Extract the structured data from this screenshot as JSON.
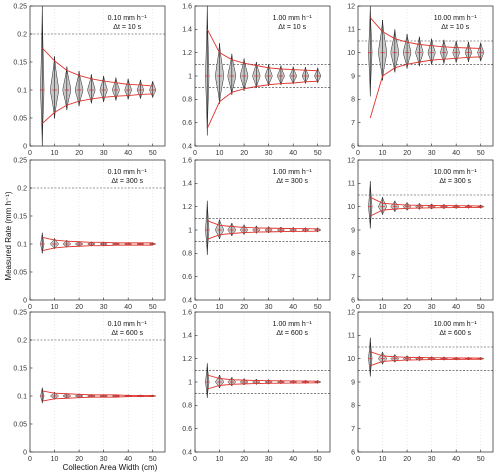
{
  "figure": {
    "xlabel": "Collection Area Width (cm)",
    "ylabel": "Measured Rate (mm h⁻¹)"
  },
  "chart_data": [
    {
      "type": "violin",
      "rate_label": "0.10 mm h⁻¹",
      "dt_label": "Δt = 10 s",
      "true_rate": 0.1,
      "ylim": [
        0,
        0.25
      ],
      "yticks": [
        0,
        0.05,
        0.1,
        0.15,
        0.2,
        0.25
      ],
      "ytick_labels": [
        "0",
        "0.05",
        "0.1",
        "0.15",
        "0.2",
        "0.25"
      ],
      "ref_lines": [
        0.2
      ],
      "xlim": [
        0,
        55
      ],
      "xticks": [
        0,
        10,
        20,
        30,
        40,
        50
      ],
      "widths": [
        5,
        10,
        15,
        20,
        25,
        30,
        35,
        40,
        45,
        50
      ],
      "spread": [
        0.25,
        0.06,
        0.042,
        0.034,
        0.028,
        0.025,
        0.022,
        0.02,
        0.018,
        0.016
      ],
      "envelope_upper": [
        0.175,
        0.152,
        0.135,
        0.126,
        0.12,
        0.116,
        0.113,
        0.11,
        0.109,
        0.107
      ],
      "envelope_lower": [
        0.04,
        0.06,
        0.073,
        0.08,
        0.084,
        0.087,
        0.089,
        0.09,
        0.092,
        0.093
      ]
    },
    {
      "type": "violin",
      "rate_label": "1.00 mm h⁻¹",
      "dt_label": "Δt = 10 s",
      "true_rate": 1.0,
      "ylim": [
        0.4,
        1.6
      ],
      "yticks": [
        0.4,
        0.6,
        0.8,
        1.0,
        1.2,
        1.4,
        1.6
      ],
      "ytick_labels": [
        "0.4",
        "0.6",
        "0.8",
        "1",
        "1.2",
        "1.4",
        "1.6"
      ],
      "ref_lines": [
        1.1,
        0.9
      ],
      "xlim": [
        0,
        55
      ],
      "xticks": [
        0,
        10,
        20,
        30,
        40,
        50
      ],
      "widths": [
        5,
        10,
        15,
        20,
        25,
        30,
        35,
        40,
        45,
        50
      ],
      "spread": [
        0.6,
        0.28,
        0.19,
        0.15,
        0.12,
        0.1,
        0.09,
        0.08,
        0.075,
        0.07
      ],
      "envelope_upper": [
        1.4,
        1.2,
        1.14,
        1.11,
        1.09,
        1.07,
        1.06,
        1.055,
        1.05,
        1.045
      ],
      "envelope_lower": [
        0.55,
        0.78,
        0.86,
        0.89,
        0.91,
        0.925,
        0.935,
        0.94,
        0.95,
        0.955
      ]
    },
    {
      "type": "violin",
      "rate_label": "10.00 mm h⁻¹",
      "dt_label": "Δt = 10 s",
      "true_rate": 10.0,
      "ylim": [
        6,
        12
      ],
      "yticks": [
        6,
        7,
        8,
        9,
        10,
        11,
        12
      ],
      "ytick_labels": [
        "6",
        "7",
        "8",
        "9",
        "10",
        "11",
        "12"
      ],
      "ref_lines": [
        10.5,
        9.5
      ],
      "xlim": [
        0,
        55
      ],
      "xticks": [
        0,
        10,
        20,
        30,
        40,
        50
      ],
      "widths": [
        5,
        10,
        15,
        20,
        25,
        30,
        35,
        40,
        45,
        50
      ],
      "spread": [
        2.2,
        1.4,
        1.0,
        0.8,
        0.68,
        0.6,
        0.55,
        0.5,
        0.46,
        0.43
      ],
      "envelope_upper": [
        11.5,
        10.9,
        10.6,
        10.45,
        10.35,
        10.3,
        10.25,
        10.22,
        10.2,
        10.18
      ],
      "envelope_lower": [
        7.2,
        9.0,
        9.35,
        9.5,
        9.6,
        9.68,
        9.72,
        9.76,
        9.8,
        9.82
      ]
    },
    {
      "type": "violin",
      "rate_label": "0.10 mm h⁻¹",
      "dt_label": "Δt = 300 s",
      "true_rate": 0.1,
      "ylim": [
        0,
        0.25
      ],
      "yticks": [
        0,
        0.05,
        0.1,
        0.15,
        0.2,
        0.25
      ],
      "ytick_labels": [
        "0",
        "0.05",
        "0.1",
        "0.15",
        "0.2",
        "0.25"
      ],
      "ref_lines": [
        0.2
      ],
      "xlim": [
        0,
        55
      ],
      "xticks": [
        0,
        10,
        20,
        30,
        40,
        50
      ],
      "widths": [
        5,
        10,
        15,
        20,
        25,
        30,
        35,
        40,
        45,
        50
      ],
      "spread": [
        0.02,
        0.01,
        0.007,
        0.005,
        0.004,
        0.0035,
        0.003,
        0.0028,
        0.0025,
        0.0023
      ],
      "envelope_upper": [
        0.112,
        0.107,
        0.105,
        0.104,
        0.103,
        0.103,
        0.102,
        0.102,
        0.102,
        0.102
      ],
      "envelope_lower": [
        0.088,
        0.093,
        0.095,
        0.096,
        0.097,
        0.097,
        0.098,
        0.098,
        0.098,
        0.098
      ]
    },
    {
      "type": "violin",
      "rate_label": "1.00 mm h⁻¹",
      "dt_label": "Δt = 300 s",
      "true_rate": 1.0,
      "ylim": [
        0.4,
        1.6
      ],
      "yticks": [
        0.4,
        0.6,
        0.8,
        1.0,
        1.2,
        1.4,
        1.6
      ],
      "ytick_labels": [
        "0.4",
        "0.6",
        "0.8",
        "1",
        "1.2",
        "1.4",
        "1.6"
      ],
      "ref_lines": [
        1.1,
        0.9
      ],
      "xlim": [
        0,
        55
      ],
      "xticks": [
        0,
        10,
        20,
        30,
        40,
        50
      ],
      "widths": [
        5,
        10,
        15,
        20,
        25,
        30,
        35,
        40,
        45,
        50
      ],
      "spread": [
        0.25,
        0.09,
        0.06,
        0.045,
        0.035,
        0.03,
        0.026,
        0.023,
        0.021,
        0.019
      ],
      "envelope_upper": [
        1.08,
        1.04,
        1.03,
        1.022,
        1.018,
        1.016,
        1.014,
        1.012,
        1.011,
        1.01
      ],
      "envelope_lower": [
        0.92,
        0.96,
        0.97,
        0.978,
        0.982,
        0.984,
        0.986,
        0.988,
        0.989,
        0.99
      ]
    },
    {
      "type": "violin",
      "rate_label": "10.00 mm h⁻¹",
      "dt_label": "Δt = 300 s",
      "true_rate": 10.0,
      "ylim": [
        6,
        12
      ],
      "yticks": [
        6,
        7,
        8,
        9,
        10,
        11,
        12
      ],
      "ytick_labels": [
        "6",
        "7",
        "8",
        "9",
        "10",
        "11",
        "12"
      ],
      "ref_lines": [
        10.5,
        9.5
      ],
      "xlim": [
        0,
        55
      ],
      "xticks": [
        0,
        10,
        20,
        30,
        40,
        50
      ],
      "widths": [
        5,
        10,
        15,
        20,
        25,
        30,
        35,
        40,
        45,
        50
      ],
      "spread": [
        1.1,
        0.4,
        0.25,
        0.18,
        0.14,
        0.12,
        0.1,
        0.09,
        0.08,
        0.075
      ],
      "envelope_upper": [
        10.4,
        10.15,
        10.1,
        10.07,
        10.06,
        10.05,
        10.045,
        10.04,
        10.035,
        10.03
      ],
      "envelope_lower": [
        9.6,
        9.85,
        9.9,
        9.93,
        9.94,
        9.95,
        9.955,
        9.96,
        9.965,
        9.97
      ]
    },
    {
      "type": "violin",
      "rate_label": "0.10 mm h⁻¹",
      "dt_label": "Δt = 600 s",
      "true_rate": 0.1,
      "ylim": [
        0,
        0.25
      ],
      "yticks": [
        0,
        0.05,
        0.1,
        0.15,
        0.2,
        0.25
      ],
      "ytick_labels": [
        "0",
        "0.05",
        "0.1",
        "0.15",
        "0.2",
        "0.25"
      ],
      "ref_lines": [
        0.2
      ],
      "xlim": [
        0,
        55
      ],
      "xticks": [
        0,
        10,
        20,
        30,
        40,
        50
      ],
      "widths": [
        5,
        10,
        15,
        20,
        25,
        30,
        35,
        40,
        45,
        50
      ],
      "spread": [
        0.015,
        0.007,
        0.005,
        0.004,
        0.003,
        0.0027,
        0.0024,
        0.0022,
        0.002,
        0.0018
      ],
      "envelope_upper": [
        0.109,
        0.105,
        0.104,
        0.103,
        0.102,
        0.102,
        0.102,
        0.101,
        0.101,
        0.101
      ],
      "envelope_lower": [
        0.091,
        0.095,
        0.096,
        0.097,
        0.098,
        0.098,
        0.098,
        0.099,
        0.099,
        0.099
      ]
    },
    {
      "type": "violin",
      "rate_label": "1.00 mm h⁻¹",
      "dt_label": "Δt = 600 s",
      "true_rate": 1.0,
      "ylim": [
        0.4,
        1.6
      ],
      "yticks": [
        0.4,
        0.6,
        0.8,
        1.0,
        1.2,
        1.4,
        1.6
      ],
      "ytick_labels": [
        "0.4",
        "0.6",
        "0.8",
        "1",
        "1.2",
        "1.4",
        "1.6"
      ],
      "ref_lines": [
        1.1,
        0.9
      ],
      "xlim": [
        0,
        55
      ],
      "xticks": [
        0,
        10,
        20,
        30,
        40,
        50
      ],
      "widths": [
        5,
        10,
        15,
        20,
        25,
        30,
        35,
        40,
        45,
        50
      ],
      "spread": [
        0.16,
        0.06,
        0.04,
        0.03,
        0.025,
        0.021,
        0.018,
        0.016,
        0.015,
        0.014
      ],
      "envelope_upper": [
        1.06,
        1.03,
        1.02,
        1.016,
        1.013,
        1.011,
        1.01,
        1.009,
        1.008,
        1.007
      ],
      "envelope_lower": [
        0.94,
        0.97,
        0.98,
        0.984,
        0.987,
        0.989,
        0.99,
        0.991,
        0.992,
        0.993
      ]
    },
    {
      "type": "violin",
      "rate_label": "10.00 mm h⁻¹",
      "dt_label": "Δt = 600 s",
      "true_rate": 10.0,
      "ylim": [
        6,
        12
      ],
      "yticks": [
        6,
        7,
        8,
        9,
        10,
        11,
        12
      ],
      "ytick_labels": [
        "6",
        "7",
        "8",
        "9",
        "10",
        "11",
        "12"
      ],
      "ref_lines": [
        10.5,
        9.5
      ],
      "xlim": [
        0,
        55
      ],
      "xticks": [
        0,
        10,
        20,
        30,
        40,
        50
      ],
      "widths": [
        5,
        10,
        15,
        20,
        25,
        30,
        35,
        40,
        45,
        50
      ],
      "spread": [
        0.9,
        0.28,
        0.18,
        0.13,
        0.1,
        0.085,
        0.075,
        0.065,
        0.06,
        0.055
      ],
      "envelope_upper": [
        10.3,
        10.12,
        10.08,
        10.06,
        10.05,
        10.04,
        10.035,
        10.03,
        10.028,
        10.025
      ],
      "envelope_lower": [
        9.7,
        9.88,
        9.92,
        9.94,
        9.95,
        9.96,
        9.965,
        9.97,
        9.972,
        9.975
      ]
    }
  ],
  "colors": {
    "violin_fill": "#c8c8c8",
    "violin_edge": "#222222",
    "envelope": "#e0322c",
    "median": "#e0322c",
    "ref_line": "#333333",
    "grid": "#dddddd",
    "axis": "#222222"
  }
}
